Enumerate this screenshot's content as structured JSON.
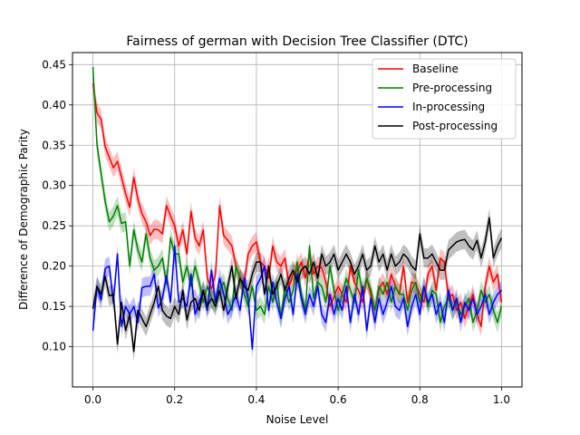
{
  "chart_data": {
    "type": "line",
    "title": "Fairness of german with Decision Tree Classifier (DTC)",
    "xlabel": "Noise Level",
    "ylabel": "Difference of Demographic Parity",
    "xlim": [
      -0.05,
      1.05
    ],
    "ylim": [
      0.05,
      0.465
    ],
    "xticks": [
      0.0,
      0.2,
      0.4,
      0.6,
      0.8,
      1.0
    ],
    "xtick_labels": [
      "0.0",
      "0.2",
      "0.4",
      "0.6",
      "0.8",
      "1.0"
    ],
    "yticks": [
      0.1,
      0.15,
      0.2,
      0.25,
      0.3,
      0.35,
      0.4,
      0.45
    ],
    "ytick_labels": [
      "0.10",
      "0.15",
      "0.20",
      "0.25",
      "0.30",
      "0.35",
      "0.40",
      "0.45"
    ],
    "grid": true,
    "legend_position": "top-right",
    "x": [
      0.0,
      0.01,
      0.02,
      0.03,
      0.04,
      0.05,
      0.06,
      0.07,
      0.08,
      0.09,
      0.1,
      0.11,
      0.12,
      0.13,
      0.14,
      0.15,
      0.16,
      0.17,
      0.18,
      0.19,
      0.2,
      0.21,
      0.22,
      0.23,
      0.24,
      0.25,
      0.26,
      0.27,
      0.28,
      0.29,
      0.3,
      0.31,
      0.32,
      0.33,
      0.34,
      0.35,
      0.36,
      0.37,
      0.38,
      0.39,
      0.4,
      0.41,
      0.42,
      0.43,
      0.44,
      0.45,
      0.46,
      0.47,
      0.48,
      0.49,
      0.5,
      0.51,
      0.52,
      0.53,
      0.54,
      0.55,
      0.56,
      0.57,
      0.58,
      0.59,
      0.6,
      0.61,
      0.62,
      0.63,
      0.64,
      0.65,
      0.66,
      0.67,
      0.68,
      0.69,
      0.7,
      0.71,
      0.72,
      0.73,
      0.74,
      0.75,
      0.76,
      0.77,
      0.78,
      0.79,
      0.8,
      0.81,
      0.82,
      0.83,
      0.84,
      0.85,
      0.86,
      0.87,
      0.88,
      0.89,
      0.9,
      0.91,
      0.92,
      0.93,
      0.94,
      0.95,
      0.96,
      0.97,
      0.98,
      0.99,
      1.0
    ],
    "band_halfwidth": 0.012,
    "series": [
      {
        "name": "Baseline",
        "color": "#ff0000",
        "values": [
          0.427,
          0.39,
          0.382,
          0.348,
          0.335,
          0.322,
          0.33,
          0.31,
          0.29,
          0.273,
          0.31,
          0.283,
          0.265,
          0.255,
          0.238,
          0.246,
          0.245,
          0.24,
          0.275,
          0.262,
          0.25,
          0.225,
          0.245,
          0.215,
          0.268,
          0.235,
          0.225,
          0.245,
          0.185,
          0.172,
          0.19,
          0.275,
          0.238,
          0.232,
          0.225,
          0.2,
          0.185,
          0.178,
          0.215,
          0.225,
          0.23,
          0.205,
          0.2,
          0.185,
          0.225,
          0.205,
          0.2,
          0.21,
          0.175,
          0.19,
          0.195,
          0.205,
          0.185,
          0.215,
          0.19,
          0.2,
          0.198,
          0.18,
          0.15,
          0.162,
          0.175,
          0.165,
          0.155,
          0.2,
          0.18,
          0.17,
          0.155,
          0.185,
          0.165,
          0.145,
          0.172,
          0.18,
          0.165,
          0.19,
          0.175,
          0.165,
          0.2,
          0.155,
          0.18,
          0.178,
          0.165,
          0.155,
          0.19,
          0.2,
          0.17,
          0.21,
          0.205,
          0.16,
          0.165,
          0.145,
          0.155,
          0.135,
          0.15,
          0.165,
          0.14,
          0.125,
          0.175,
          0.2,
          0.18,
          0.19,
          0.155
        ]
      },
      {
        "name": "Pre-processing",
        "color": "#008000",
        "values": [
          0.447,
          0.35,
          0.315,
          0.28,
          0.255,
          0.262,
          0.275,
          0.253,
          0.255,
          0.2,
          0.245,
          0.22,
          0.205,
          0.24,
          0.21,
          0.195,
          0.2,
          0.21,
          0.178,
          0.235,
          0.215,
          0.215,
          0.18,
          0.2,
          0.175,
          0.2,
          0.18,
          0.155,
          0.175,
          0.16,
          0.155,
          0.17,
          0.18,
          0.16,
          0.145,
          0.2,
          0.185,
          0.165,
          0.15,
          0.175,
          0.145,
          0.15,
          0.14,
          0.175,
          0.155,
          0.18,
          0.135,
          0.175,
          0.155,
          0.17,
          0.205,
          0.165,
          0.145,
          0.225,
          0.16,
          0.18,
          0.175,
          0.155,
          0.2,
          0.17,
          0.145,
          0.165,
          0.185,
          0.17,
          0.155,
          0.195,
          0.165,
          0.185,
          0.17,
          0.145,
          0.175,
          0.165,
          0.18,
          0.155,
          0.175,
          0.165,
          0.165,
          0.145,
          0.17,
          0.18,
          0.155,
          0.175,
          0.15,
          0.17,
          0.165,
          0.13,
          0.15,
          0.16,
          0.145,
          0.155,
          0.14,
          0.15,
          0.16,
          0.13,
          0.145,
          0.17,
          0.155,
          0.165,
          0.145,
          0.13,
          0.15
        ]
      },
      {
        "name": "In-processing",
        "color": "#0000ff",
        "values": [
          0.12,
          0.175,
          0.158,
          0.197,
          0.2,
          0.155,
          0.215,
          0.125,
          0.15,
          0.14,
          0.15,
          0.13,
          0.173,
          0.175,
          0.175,
          0.19,
          0.148,
          0.16,
          0.188,
          0.155,
          0.225,
          0.155,
          0.16,
          0.15,
          0.19,
          0.14,
          0.155,
          0.17,
          0.145,
          0.195,
          0.155,
          0.185,
          0.165,
          0.14,
          0.15,
          0.165,
          0.145,
          0.185,
          0.16,
          0.097,
          0.175,
          0.185,
          0.2,
          0.145,
          0.18,
          0.155,
          0.135,
          0.16,
          0.175,
          0.14,
          0.19,
          0.16,
          0.14,
          0.165,
          0.15,
          0.175,
          0.14,
          0.13,
          0.165,
          0.14,
          0.16,
          0.145,
          0.175,
          0.13,
          0.165,
          0.14,
          0.175,
          0.12,
          0.16,
          0.13,
          0.16,
          0.14,
          0.155,
          0.175,
          0.15,
          0.145,
          0.16,
          0.125,
          0.15,
          0.165,
          0.14,
          0.175,
          0.155,
          0.165,
          0.14,
          0.155,
          0.13,
          0.17,
          0.145,
          0.16,
          0.13,
          0.155,
          0.145,
          0.16,
          0.14,
          0.15,
          0.165,
          0.14,
          0.155,
          0.165,
          0.17
        ]
      },
      {
        "name": "Post-processing",
        "color": "#000000",
        "values": [
          0.147,
          0.175,
          0.165,
          0.187,
          0.163,
          0.165,
          0.103,
          0.155,
          0.12,
          0.14,
          0.094,
          0.145,
          0.135,
          0.125,
          0.14,
          0.155,
          0.175,
          0.145,
          0.138,
          0.135,
          0.15,
          0.14,
          0.17,
          0.133,
          0.155,
          0.16,
          0.145,
          0.17,
          0.15,
          0.16,
          0.15,
          0.17,
          0.145,
          0.175,
          0.2,
          0.16,
          0.185,
          0.175,
          0.17,
          0.19,
          0.205,
          0.205,
          0.165,
          0.2,
          0.165,
          0.175,
          0.19,
          0.17,
          0.185,
          0.195,
          0.18,
          0.195,
          0.2,
          0.19,
          0.205,
          0.185,
          0.215,
          0.2,
          0.205,
          0.215,
          0.195,
          0.205,
          0.215,
          0.205,
          0.19,
          0.2,
          0.215,
          0.195,
          0.2,
          0.225,
          0.205,
          0.215,
          0.195,
          0.215,
          0.2,
          0.205,
          0.215,
          0.21,
          0.2,
          0.195,
          0.24,
          0.21,
          0.21,
          0.215,
          0.205,
          0.195,
          0.195,
          0.22,
          0.225,
          0.23,
          0.232,
          0.233,
          0.225,
          0.22,
          0.232,
          0.21,
          0.23,
          0.26,
          0.21,
          0.225,
          0.235
        ]
      }
    ]
  }
}
